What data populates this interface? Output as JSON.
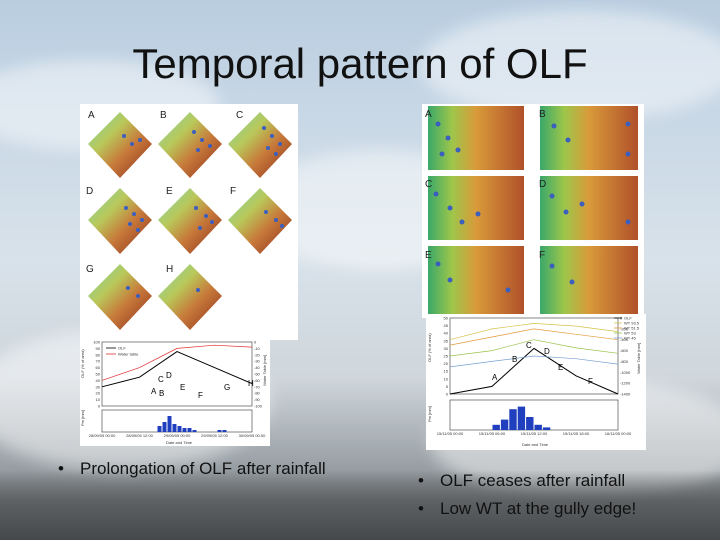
{
  "slide": {
    "title": "Temporal pattern of OLF",
    "left_bullets": [
      "Prolongation of OLF after rainfall"
    ],
    "right_bullets": [
      "OLF ceases after rainfall",
      "Low WT at the gully edge!"
    ],
    "bullet_glyph": "•"
  },
  "left_maps": {
    "labels": [
      "A",
      "B",
      "C",
      "D",
      "E",
      "F",
      "G",
      "H"
    ]
  },
  "right_maps": {
    "labels": [
      "A",
      "B",
      "C",
      "D",
      "E",
      "F"
    ]
  },
  "left_chart": {
    "legend": [
      "OLF",
      "Water table"
    ],
    "ylabel_top": "OLF (% of area)",
    "ylabel_bottom": "Pm [mm]",
    "ylabel_right": "Water Table [mm]",
    "xlabel": "Date and Time",
    "xticks": [
      "28/09/05 00:00",
      "28/09/05 12:00",
      "29/09/05 00:00",
      "29/09/05 12:00",
      "30/09/05 00:00"
    ],
    "yticks": [
      "100",
      "90",
      "80",
      "70",
      "60",
      "50",
      "40",
      "30",
      "20",
      "10",
      "0"
    ],
    "rticks": [
      "0",
      "-10",
      "-20",
      "-30",
      "-40",
      "-50",
      "-60",
      "-70",
      "-80",
      "-90",
      "-100"
    ],
    "point_labels": [
      "A",
      "B",
      "C",
      "D",
      "E",
      "F",
      "G",
      "H"
    ]
  },
  "right_chart": {
    "legend": [
      "OLF",
      "WT 93.5",
      "WT 51.5",
      "WT 53",
      "WT 45"
    ],
    "ylabel_top": "OLF (% of area)",
    "ylabel_bottom": "Pm [mm]",
    "ylabel_right": "Water Table [mm]",
    "xlabel": "Date and Time",
    "xticks": [
      "15/11/05 00:00",
      "15/11/05 06:00",
      "15/11/05 12:00",
      "15/11/05 18:00",
      "16/11/05 00:00"
    ],
    "yticks": [
      "50",
      "45",
      "40",
      "35",
      "30",
      "25",
      "20",
      "15",
      "10",
      "5",
      "0"
    ],
    "rticks": [
      "0",
      "-200",
      "-400",
      "-600",
      "-800",
      "-1000",
      "-1200",
      "-1400"
    ],
    "point_labels": [
      "A",
      "B",
      "C",
      "D",
      "E",
      "F"
    ]
  },
  "chart_data": [
    {
      "type": "line",
      "x": [
        "28/09/05 00:00",
        "28/09/05 12:00",
        "29/09/05 00:00",
        "29/09/05 12:00",
        "30/09/05 00:00"
      ],
      "series": [
        {
          "name": "OLF",
          "values": [
            30,
            45,
            85,
            60,
            35
          ]
        },
        {
          "name": "Water table",
          "values": [
            -60,
            -40,
            -10,
            -5,
            -8
          ]
        }
      ],
      "xlabel": "Date and Time",
      "ylabel": "OLF (% of area)"
    },
    {
      "type": "line",
      "x": [
        "15/11/05 00:00",
        "15/11/05 06:00",
        "15/11/05 12:00",
        "15/11/05 18:00",
        "16/11/05 00:00"
      ],
      "series": [
        {
          "name": "OLF",
          "values": [
            0,
            5,
            30,
            12,
            0
          ]
        },
        {
          "name": "WT 93.5",
          "values": [
            -400,
            -200,
            -100,
            -150,
            -250
          ]
        },
        {
          "name": "WT 51.5",
          "values": [
            -500,
            -350,
            -200,
            -300,
            -400
          ]
        },
        {
          "name": "WT 53",
          "values": [
            -700,
            -600,
            -400,
            -550,
            -650
          ]
        },
        {
          "name": "WT 45",
          "values": [
            -900,
            -800,
            -700,
            -750,
            -850
          ]
        }
      ],
      "xlabel": "Date and Time",
      "ylabel": "OLF (% of area)"
    }
  ]
}
